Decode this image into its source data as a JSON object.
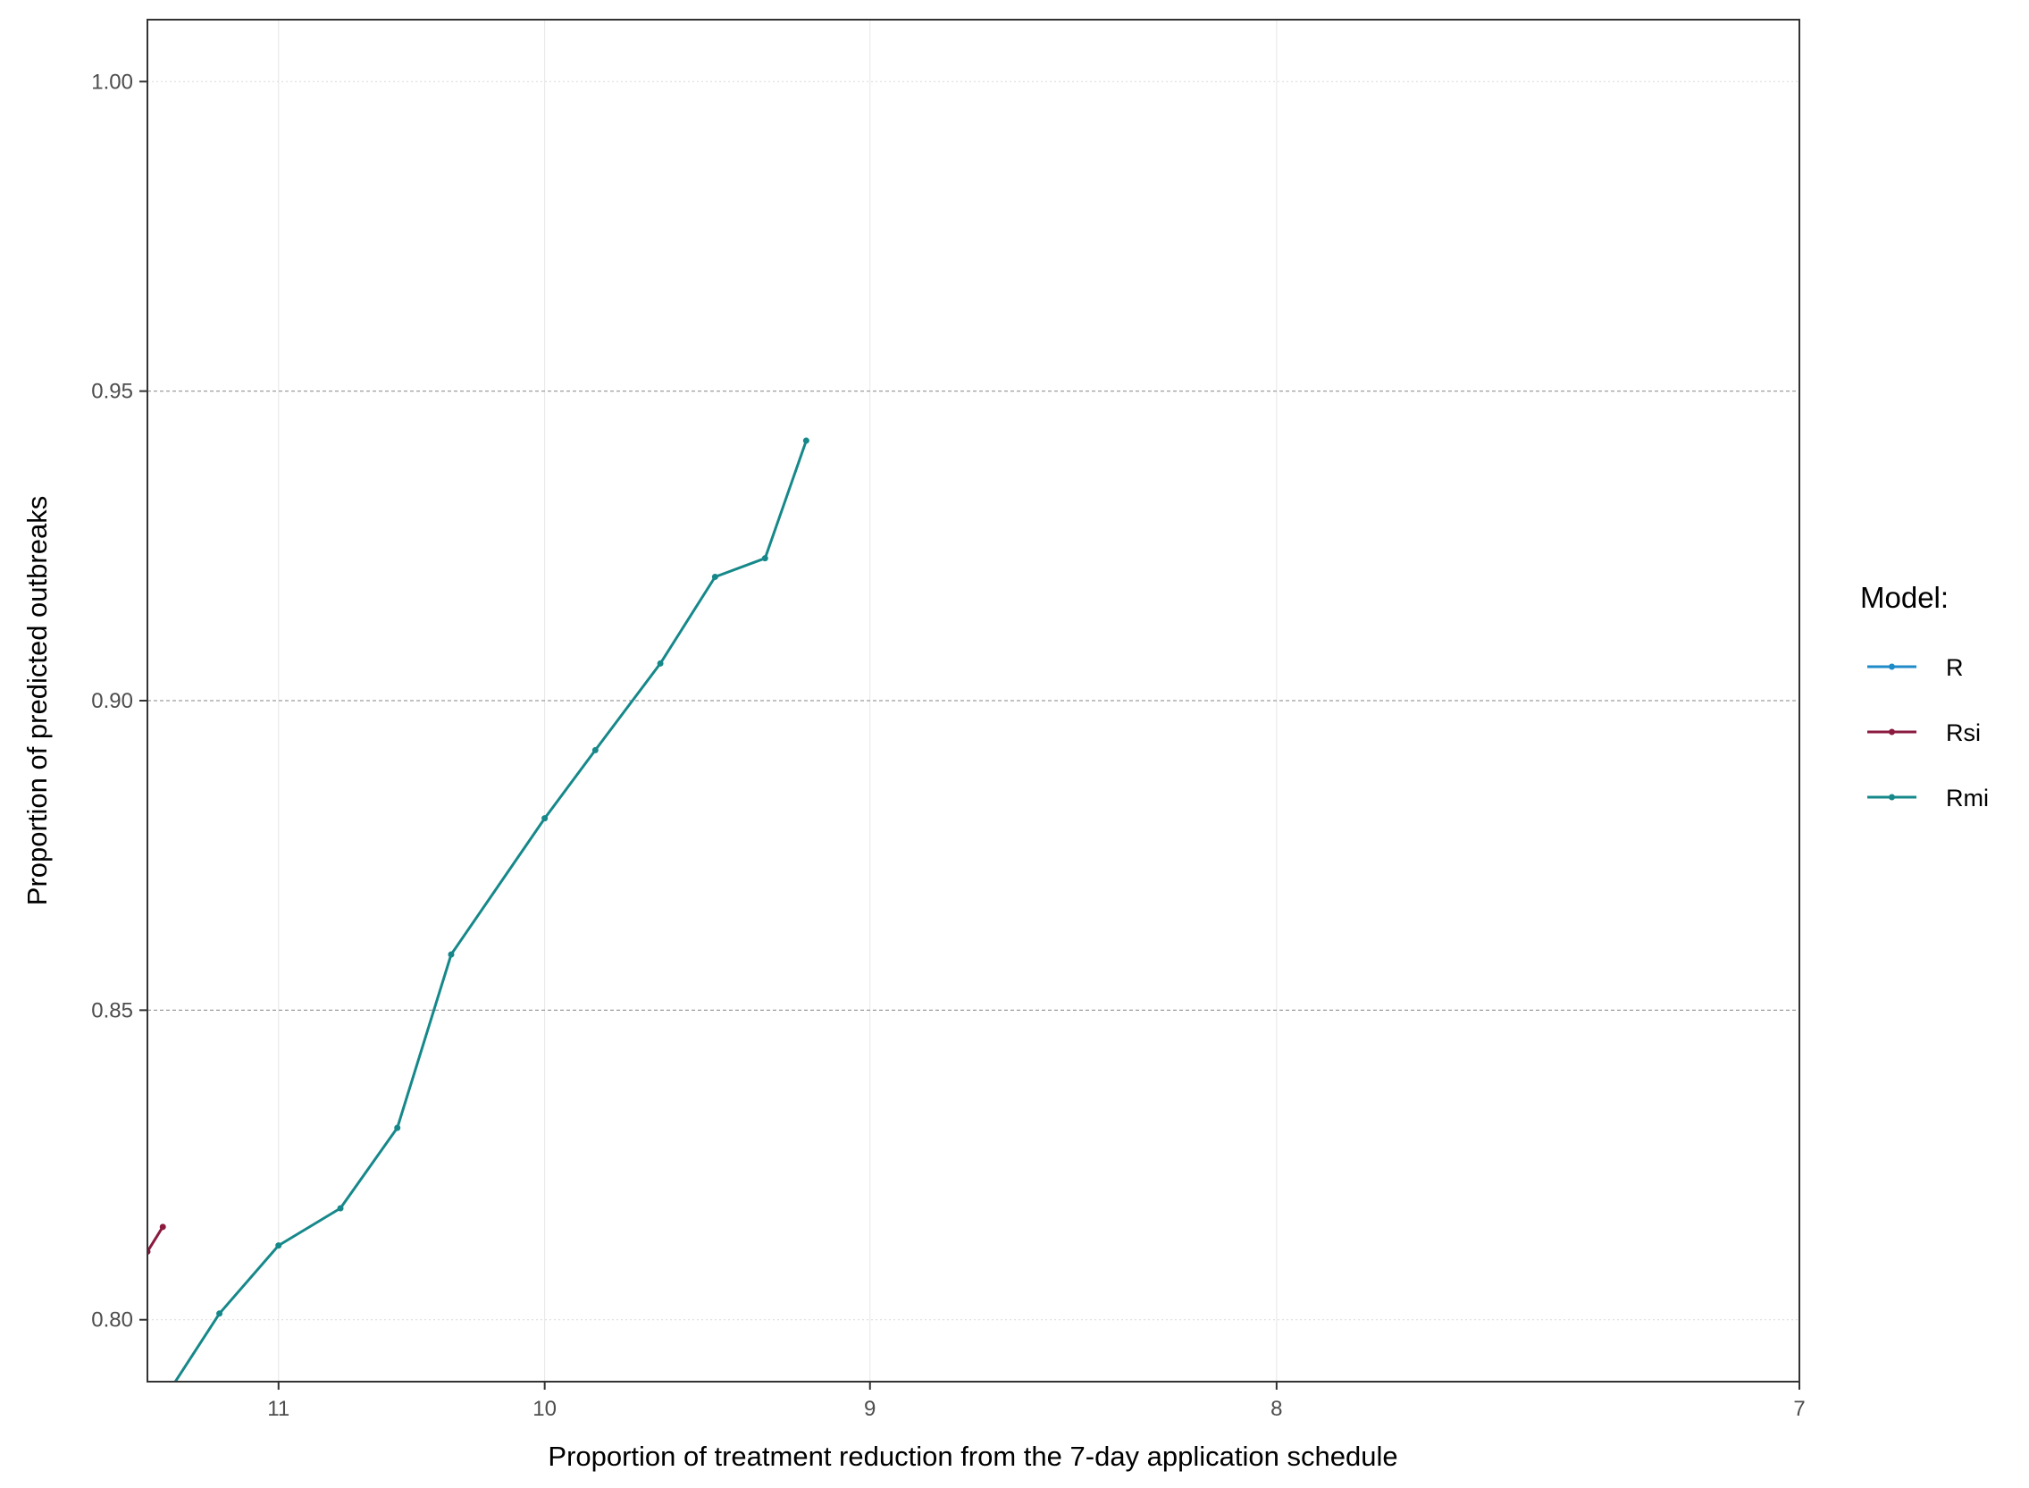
{
  "chart_data": {
    "type": "line",
    "title": "",
    "xlabel": "Proportion of treatment reduction from the 7-day application schedule",
    "ylabel": "Proportion of predicted outbreaks",
    "x_scale": "reciprocal",
    "x_reversed": true,
    "xlim": [
      11.57,
      7.0
    ],
    "ylim": [
      0.79,
      1.01
    ],
    "x_ticks": [
      11,
      10,
      9,
      8,
      7
    ],
    "x_tick_labels": [
      "11",
      "10",
      "9",
      "8",
      "7"
    ],
    "y_ticks": [
      0.8,
      0.85,
      0.9,
      0.95,
      1.0
    ],
    "y_tick_labels": [
      "0.80",
      "0.85",
      "0.90",
      "0.95",
      "1.00"
    ],
    "grid": true,
    "legend": {
      "title": "Model:",
      "position": "right",
      "entries": [
        "R",
        "Rsi",
        "Rmi"
      ]
    },
    "colors": {
      "R": "#1f8ac8",
      "Rsi": "#8b1a3f",
      "Rmi": "#16888a"
    },
    "series": [
      {
        "name": "R",
        "color": "#1f8ac8",
        "x": [],
        "y": []
      },
      {
        "name": "Rsi",
        "color": "#8b1a3f",
        "x": [
          11.5,
          11.57
        ],
        "y": [
          0.815,
          0.811
        ]
      },
      {
        "name": "Rmi",
        "color": "#16888a",
        "x": [
          11.48,
          11.25,
          11.0,
          10.75,
          10.53,
          10.33,
          10.0,
          9.83,
          9.62,
          9.45,
          9.3,
          9.18
        ],
        "y": [
          0.788,
          0.801,
          0.812,
          0.818,
          0.831,
          0.859,
          0.881,
          0.892,
          0.906,
          0.92,
          0.923,
          0.942
        ]
      }
    ]
  }
}
